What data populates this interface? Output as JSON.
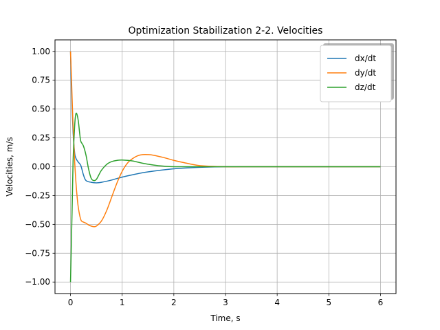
{
  "chart_data": {
    "type": "line",
    "title": "Optimization Stabilization 2-2. Velocities",
    "xlabel": "Time, s",
    "ylabel": "Velocities, m/s",
    "xlim": [
      -0.3,
      6.3
    ],
    "ylim": [
      -1.1,
      1.1
    ],
    "xticks": [
      0,
      1,
      2,
      3,
      4,
      5,
      6
    ],
    "xtick_labels": [
      "0",
      "1",
      "2",
      "3",
      "4",
      "5",
      "6"
    ],
    "yticks": [
      1.0,
      0.75,
      0.5,
      0.25,
      0.0,
      -0.25,
      -0.5,
      -0.75,
      -1.0
    ],
    "ytick_labels": [
      "1.00",
      "0.75",
      "0.50",
      "0.25",
      "0.00",
      "−0.25",
      "−0.50",
      "−0.75",
      "−1.00"
    ],
    "grid": true,
    "legend_position": "top-right",
    "series": [
      {
        "name": "dx/dt",
        "color": "#1f77b4",
        "x": [
          0,
          0.02,
          0.05,
          0.08,
          0.1,
          0.12,
          0.15,
          0.2,
          0.25,
          0.3,
          0.4,
          0.5,
          0.6,
          0.8,
          1.0,
          1.2,
          1.5,
          2.0,
          2.5,
          3.0,
          3.5,
          4.0,
          5.0,
          6.0
        ],
        "y": [
          1.0,
          0.65,
          0.3,
          0.12,
          0.08,
          0.06,
          0.04,
          0.01,
          -0.07,
          -0.12,
          -0.135,
          -0.14,
          -0.135,
          -0.115,
          -0.09,
          -0.07,
          -0.045,
          -0.018,
          -0.005,
          0.0,
          0.0,
          0.0,
          0.0,
          0.0
        ]
      },
      {
        "name": "dy/dt",
        "color": "#ff7f0e",
        "x": [
          0,
          0.02,
          0.05,
          0.08,
          0.1,
          0.12,
          0.15,
          0.2,
          0.25,
          0.3,
          0.35,
          0.4,
          0.45,
          0.5,
          0.6,
          0.7,
          0.8,
          0.9,
          1.0,
          1.1,
          1.2,
          1.3,
          1.4,
          1.5,
          1.6,
          1.8,
          2.0,
          2.2,
          2.5,
          3.0,
          3.5,
          4.0,
          5.0,
          6.0
        ],
        "y": [
          1.0,
          0.75,
          0.35,
          0.05,
          -0.1,
          -0.22,
          -0.35,
          -0.46,
          -0.48,
          -0.49,
          -0.505,
          -0.515,
          -0.52,
          -0.515,
          -0.47,
          -0.38,
          -0.26,
          -0.14,
          -0.04,
          0.03,
          0.07,
          0.095,
          0.105,
          0.105,
          0.1,
          0.08,
          0.055,
          0.035,
          0.01,
          0.0,
          0.0,
          0.0,
          0.0,
          0.0
        ]
      },
      {
        "name": "dz/dt",
        "color": "#2ca02c",
        "x": [
          0,
          0.03,
          0.05,
          0.08,
          0.1,
          0.12,
          0.15,
          0.18,
          0.2,
          0.25,
          0.3,
          0.35,
          0.4,
          0.45,
          0.5,
          0.55,
          0.6,
          0.7,
          0.8,
          0.9,
          1.0,
          1.2,
          1.4,
          1.6,
          1.8,
          2.0,
          2.5,
          3.0,
          3.5,
          4.0,
          5.0,
          6.0
        ],
        "y": [
          -1.0,
          -0.4,
          0.05,
          0.35,
          0.45,
          0.46,
          0.4,
          0.28,
          0.22,
          0.18,
          0.1,
          -0.02,
          -0.1,
          -0.12,
          -0.11,
          -0.07,
          -0.03,
          0.02,
          0.045,
          0.055,
          0.058,
          0.05,
          0.03,
          0.015,
          0.005,
          0.0,
          0.0,
          0.0,
          0.0,
          0.0,
          0.0,
          0.0
        ]
      }
    ]
  }
}
